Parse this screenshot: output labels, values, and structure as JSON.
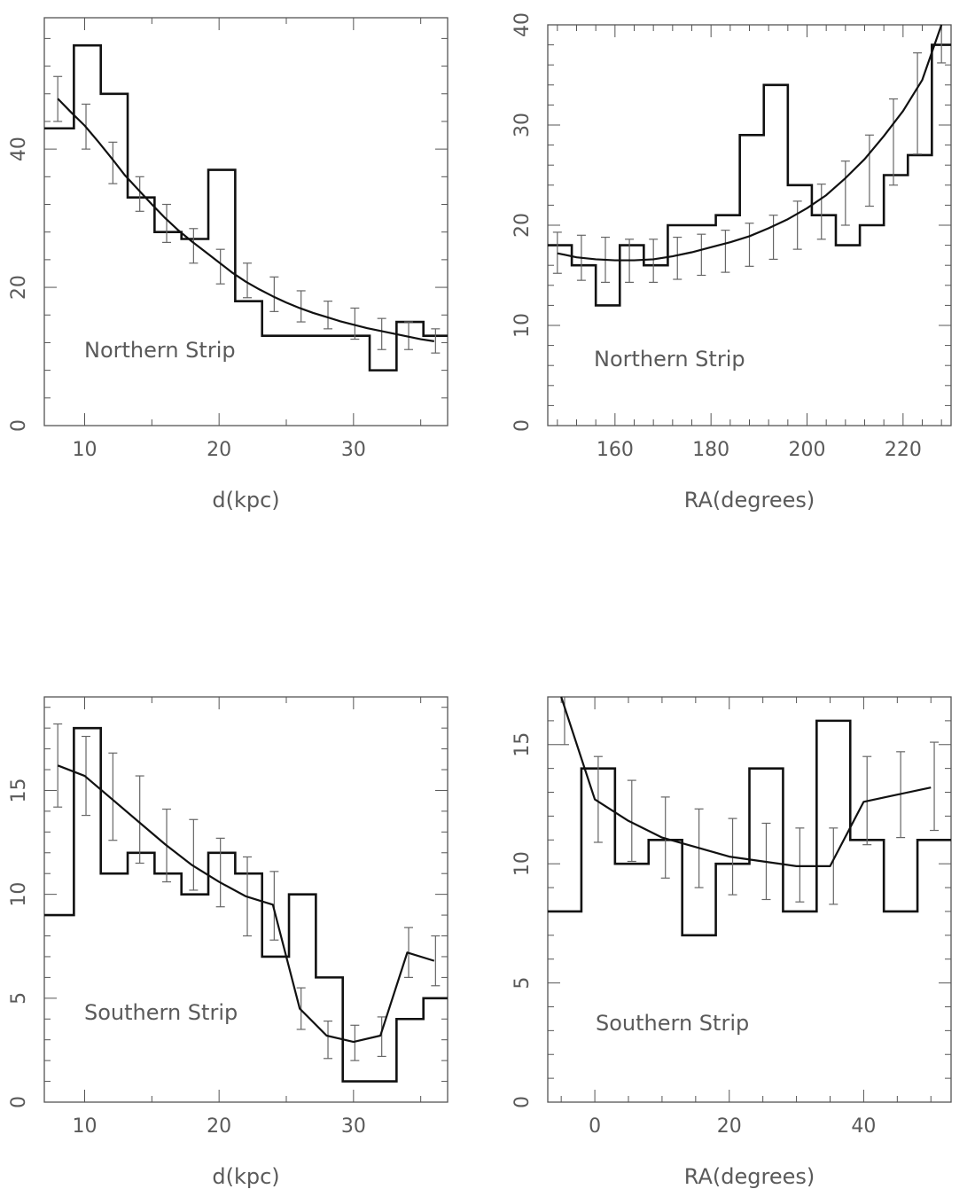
{
  "chart_data": [
    {
      "type": "histogram-with-model",
      "annotation": "Northern Strip",
      "xlabel": "d(kpc)",
      "ylabel": "",
      "xlim": [
        7,
        37
      ],
      "ylim": [
        0,
        59
      ],
      "xticks": [
        10,
        20,
        30
      ],
      "yticks": [
        0,
        20,
        40
      ],
      "minor_x": 2,
      "minor_y": 5,
      "histogram": {
        "edges": [
          7,
          9.2,
          11.2,
          13.2,
          15.2,
          17.2,
          19.2,
          21.2,
          23.2,
          25.2,
          27.2,
          29.2,
          31.2,
          33.2,
          35.2,
          37
        ],
        "counts": [
          43,
          55,
          48,
          33,
          28,
          27,
          37,
          18,
          13,
          13,
          13,
          13,
          8,
          15,
          13
        ]
      },
      "model": {
        "x": [
          8,
          9,
          10,
          11,
          12,
          13,
          14,
          15,
          16,
          17,
          18,
          19,
          20,
          21,
          22,
          23,
          24,
          25,
          26,
          27,
          28,
          29,
          30,
          31,
          32,
          33,
          34,
          35,
          36
        ],
        "y": [
          47.3,
          45.3,
          43.4,
          41.1,
          38.7,
          36.2,
          34.1,
          32.0,
          30.0,
          28.2,
          26.6,
          25.1,
          23.6,
          22.1,
          20.8,
          19.7,
          18.7,
          17.8,
          17.0,
          16.3,
          15.7,
          15.1,
          14.6,
          14.1,
          13.7,
          13.3,
          12.9,
          12.5,
          12.2
        ]
      },
      "errorbars": {
        "x": [
          8.0,
          10.1,
          12.1,
          14.1,
          16.1,
          18.1,
          20.1,
          22.1,
          24.1,
          26.1,
          28.1,
          30.1,
          32.1,
          34.1,
          36.1
        ],
        "low": [
          44.0,
          40.0,
          35.0,
          31.0,
          26.5,
          23.5,
          20.5,
          18.5,
          16.5,
          15.0,
          14.0,
          12.5,
          11.0,
          11.0,
          10.5
        ],
        "high": [
          50.5,
          46.5,
          41.0,
          36.0,
          32.0,
          28.5,
          25.5,
          23.5,
          21.5,
          19.5,
          18.0,
          17.0,
          15.5,
          15.0,
          14.0
        ]
      }
    },
    {
      "type": "histogram-with-model",
      "annotation": "Northern Strip",
      "xlabel": "RA(degrees)",
      "ylabel": "",
      "xlim": [
        146,
        230
      ],
      "ylim": [
        0,
        40
      ],
      "xticks": [
        160,
        180,
        200,
        220
      ],
      "yticks": [
        0,
        10,
        20,
        30,
        40
      ],
      "minor_x": 5,
      "minor_y": 5,
      "histogram": {
        "edges": [
          146,
          151,
          156,
          161,
          166,
          171,
          176,
          181,
          186,
          191,
          196,
          201,
          206,
          211,
          216,
          221,
          226,
          230
        ],
        "counts": [
          18,
          16,
          12,
          18,
          16,
          20,
          20,
          21,
          29,
          34,
          24,
          21,
          18,
          20,
          25,
          27,
          38
        ]
      },
      "model": {
        "x": [
          148,
          152,
          156,
          160,
          164,
          168,
          172,
          176,
          180,
          184,
          188,
          192,
          196,
          200,
          204,
          208,
          212,
          216,
          220,
          224,
          228
        ],
        "y": [
          17.2,
          16.8,
          16.6,
          16.5,
          16.5,
          16.6,
          16.9,
          17.3,
          17.8,
          18.3,
          18.9,
          19.7,
          20.6,
          21.7,
          23.0,
          24.7,
          26.6,
          28.9,
          31.4,
          34.5,
          40.0
        ]
      },
      "errorbars": {
        "x": [
          148,
          153,
          158,
          163,
          168,
          173,
          178,
          183,
          188,
          193,
          198,
          203,
          208,
          213,
          218,
          223,
          228
        ],
        "low": [
          15.2,
          14.5,
          14.3,
          14.3,
          14.3,
          14.6,
          15.0,
          15.3,
          15.9,
          16.6,
          17.6,
          18.6,
          20.0,
          21.9,
          24.0,
          27.1,
          36.2
        ],
        "high": [
          19.3,
          19.0,
          18.8,
          18.6,
          18.6,
          18.8,
          19.1,
          19.5,
          20.2,
          21.0,
          22.4,
          24.1,
          26.4,
          29.0,
          32.6,
          37.2,
          40.0
        ]
      }
    },
    {
      "type": "histogram-with-model",
      "annotation": "Southern Strip",
      "xlabel": "d(kpc)",
      "ylabel": "",
      "xlim": [
        7,
        37
      ],
      "ylim": [
        0,
        19.5
      ],
      "xticks": [
        10,
        20,
        30
      ],
      "yticks": [
        0,
        5,
        10,
        15
      ],
      "minor_x": 2,
      "minor_y": 5,
      "histogram": {
        "edges": [
          7,
          9.2,
          11.2,
          13.2,
          15.2,
          17.2,
          19.2,
          21.2,
          23.2,
          25.2,
          27.2,
          29.2,
          31.2,
          33.2,
          35.2,
          37
        ],
        "counts": [
          9,
          18,
          11,
          12,
          11,
          10,
          12,
          11,
          7,
          10,
          6,
          1,
          1,
          4,
          5
        ]
      },
      "model": {
        "x": [
          8,
          10,
          12,
          14,
          16,
          18,
          20,
          22,
          24,
          26,
          28,
          30,
          32,
          34,
          36
        ],
        "y": [
          16.2,
          15.7,
          14.6,
          13.5,
          12.4,
          11.4,
          10.6,
          9.9,
          9.5,
          4.5,
          3.2,
          2.9,
          3.2,
          7.2,
          6.8
        ]
      },
      "errorbars": {
        "x": [
          8.0,
          10.1,
          12.1,
          14.1,
          16.1,
          18.1,
          20.1,
          22.1,
          24.1,
          26.1,
          28.1,
          30.1,
          32.1,
          34.1,
          36.1
        ],
        "low": [
          14.2,
          13.8,
          12.6,
          11.5,
          10.6,
          10.2,
          9.4,
          8.0,
          7.8,
          3.5,
          2.1,
          2.0,
          2.2,
          6.0,
          5.6
        ],
        "high": [
          18.2,
          17.6,
          16.8,
          15.7,
          14.1,
          13.6,
          12.7,
          11.8,
          11.1,
          5.5,
          3.9,
          3.7,
          4.1,
          8.4,
          8.0
        ]
      }
    },
    {
      "type": "histogram-with-model",
      "annotation": "Southern Strip",
      "xlabel": "RA(degrees)",
      "ylabel": "",
      "xlim": [
        -7,
        53
      ],
      "ylim": [
        0,
        17
      ],
      "xticks": [
        0,
        20,
        40
      ],
      "yticks": [
        0,
        5,
        10,
        15
      ],
      "minor_x": 4,
      "minor_y": 5,
      "histogram": {
        "edges": [
          -7,
          -2,
          3,
          8,
          13,
          18,
          23,
          28,
          33,
          38,
          43,
          48,
          53
        ],
        "counts": [
          8,
          14,
          10,
          11,
          7,
          10,
          14,
          8,
          16,
          11,
          8,
          11
        ]
      },
      "model": {
        "x": [
          -5,
          0,
          5,
          10,
          15,
          20,
          25,
          30,
          35,
          40,
          45,
          50
        ],
        "y": [
          17.0,
          12.7,
          11.8,
          11.1,
          10.7,
          10.3,
          10.1,
          9.9,
          9.9,
          12.6,
          12.9,
          13.2
        ]
      },
      "errorbars": {
        "x": [
          -4.5,
          0.5,
          5.5,
          10.5,
          15.5,
          20.5,
          25.5,
          30.5,
          35.5,
          40.5,
          45.5,
          50.5
        ],
        "low": [
          15.0,
          10.9,
          10.1,
          9.4,
          9.0,
          8.7,
          8.5,
          8.4,
          8.3,
          10.8,
          11.1,
          11.4
        ],
        "high": [
          17.0,
          14.5,
          13.5,
          12.8,
          12.3,
          11.9,
          11.7,
          11.5,
          11.5,
          14.5,
          14.7,
          15.1
        ]
      }
    }
  ]
}
